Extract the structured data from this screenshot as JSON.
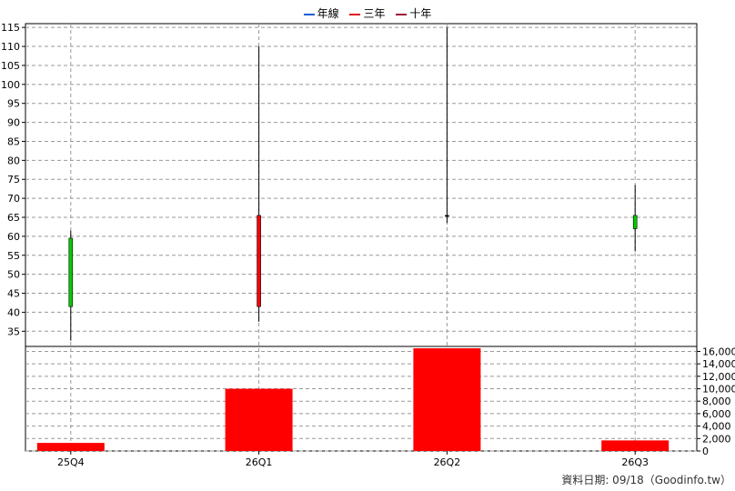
{
  "chart_data": [
    {
      "type": "candlestick",
      "legend": [
        {
          "name": "年線",
          "color": "#1f5fd6"
        },
        {
          "name": "三年",
          "color": "#e01010"
        },
        {
          "name": "十年",
          "color": "#a0103a"
        }
      ],
      "categories": [
        "25Q4",
        "26Q1",
        "26Q2",
        "26Q3"
      ],
      "candles": [
        {
          "category": "25Q4",
          "open": 41.5,
          "close": 59.5,
          "high": 61.5,
          "low": 32.5,
          "color": "#00cc00"
        },
        {
          "category": "26Q1",
          "open": 65.5,
          "close": 41.5,
          "high": 110.0,
          "low": 37.5,
          "color": "#ff0000"
        },
        {
          "category": "26Q2",
          "open": 65.5,
          "close": 65.5,
          "high": 115.0,
          "low": 63.5,
          "color": "#000000"
        },
        {
          "category": "26Q3",
          "open": 62.0,
          "close": 65.5,
          "high": 73.5,
          "low": 56.0,
          "color": "#00cc00"
        }
      ],
      "ylim": [
        31,
        116
      ],
      "yticks": [
        35,
        40,
        45,
        50,
        55,
        60,
        65,
        70,
        75,
        80,
        85,
        90,
        95,
        100,
        105,
        110,
        115
      ],
      "grid": true
    },
    {
      "type": "bar",
      "categories": [
        "25Q4",
        "26Q1",
        "26Q2",
        "26Q3"
      ],
      "values": [
        1300,
        10000,
        16500,
        1700
      ],
      "color": "#ff0000",
      "ylim": [
        0,
        16800
      ],
      "yticks": [
        "0",
        "2,000",
        "4,000",
        "6,000",
        "8,000",
        "10,000",
        "12,000",
        "14,000",
        "16,000"
      ],
      "grid": true
    }
  ],
  "footer": "資料日期: 09/18（Goodinfo.tw）"
}
